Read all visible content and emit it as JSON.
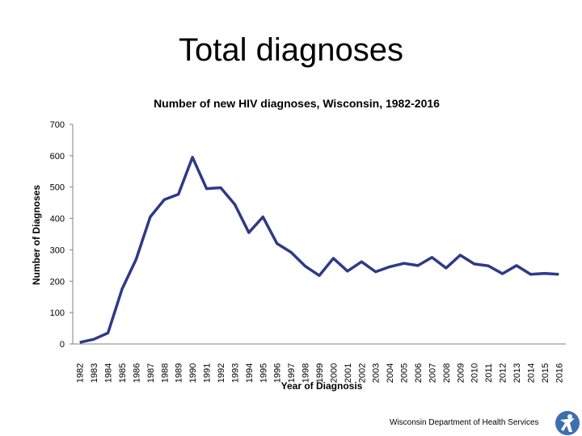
{
  "slide": {
    "title": "Total diagnoses",
    "footer": "Wisconsin Department of Health Services"
  },
  "logo_icon": "person-figure-icon",
  "colors": {
    "line": "#2e3a87",
    "axis": "#808080",
    "text": "#000000"
  },
  "chart_data": {
    "type": "line",
    "title": "Number of new HIV diagnoses, Wisconsin, 1982-2016",
    "xlabel": "Year of Diagnosis",
    "ylabel": "Number of Diagnoses",
    "ylim": [
      0,
      700
    ],
    "yticks": [
      0,
      100,
      200,
      300,
      400,
      500,
      600,
      700
    ],
    "grid": false,
    "legend": "none",
    "x": [
      "1982",
      "1983",
      "1984",
      "1985",
      "1986",
      "1987",
      "1988",
      "1989",
      "1990",
      "1991",
      "1992",
      "1993",
      "1994",
      "1995",
      "1996",
      "1997",
      "1998",
      "1999",
      "2000",
      "2001",
      "2002",
      "2003",
      "2004",
      "2005",
      "2006",
      "2007",
      "2008",
      "2009",
      "2010",
      "2011",
      "2012",
      "2013",
      "2014",
      "2015",
      "2016"
    ],
    "series": [
      {
        "values": [
          5,
          15,
          35,
          175,
          270,
          405,
          460,
          477,
          595,
          495,
          498,
          445,
          355,
          405,
          320,
          292,
          248,
          218,
          273,
          232,
          262,
          230,
          246,
          257,
          250,
          276,
          242,
          283,
          255,
          249,
          224,
          250,
          222,
          225,
          222
        ]
      }
    ]
  }
}
